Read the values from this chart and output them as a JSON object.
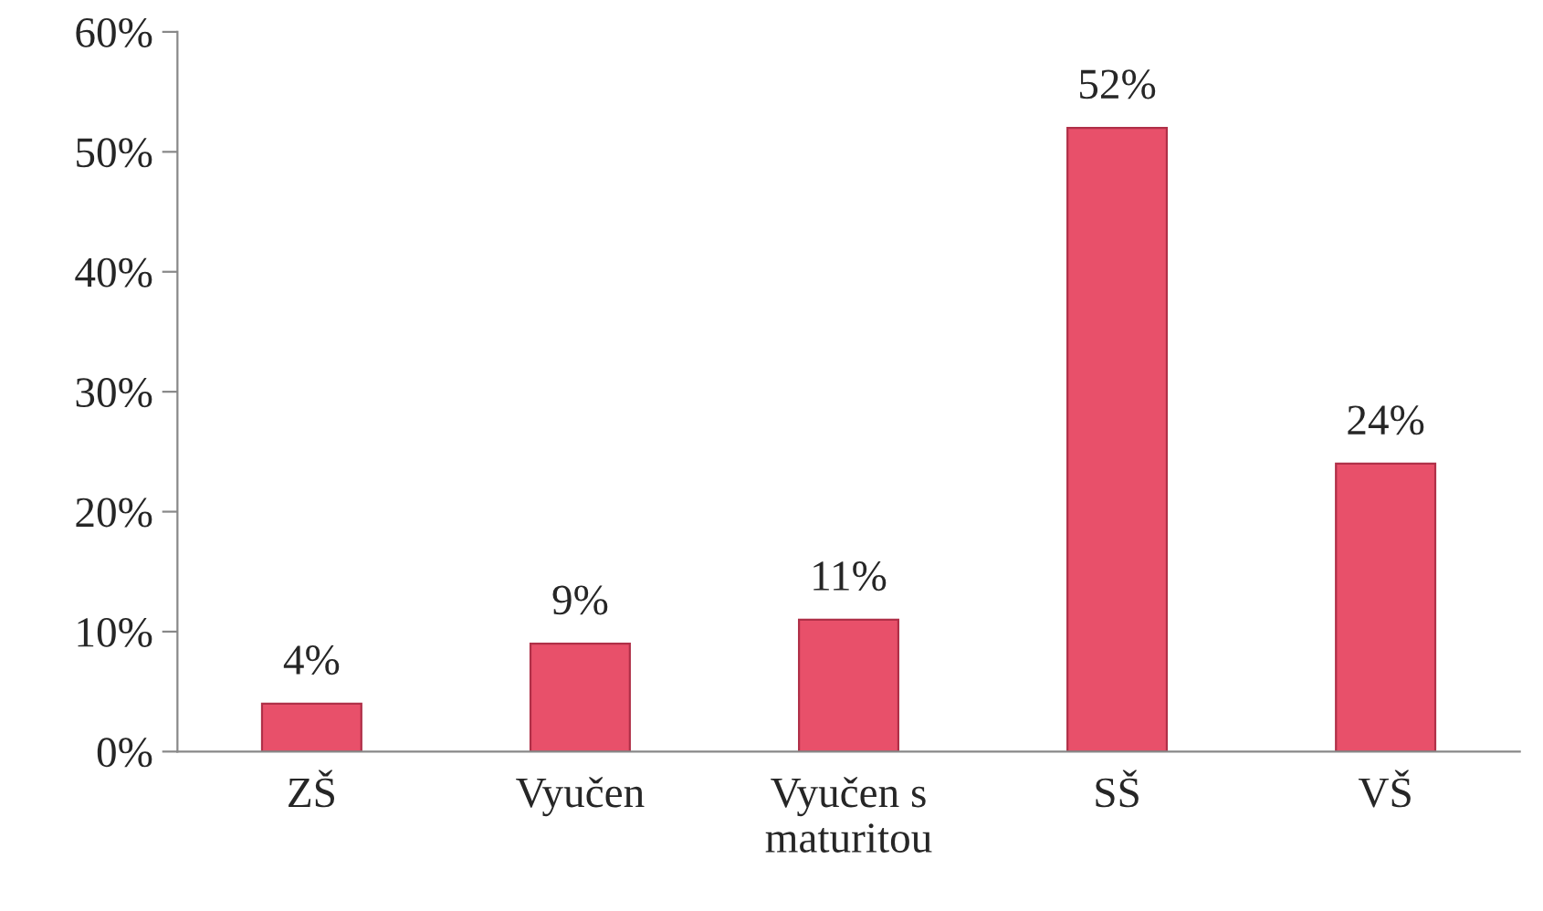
{
  "chart_data": {
    "type": "bar",
    "categories": [
      "ZŠ",
      "Vyučen",
      "Vyučen s\nmaturitou",
      "SŠ",
      "VŠ"
    ],
    "values": [
      4,
      9,
      11,
      52,
      24
    ],
    "value_labels": [
      "4%",
      "9%",
      "11%",
      "52%",
      "24%"
    ],
    "color": "#e8506a",
    "ylim": [
      0,
      60
    ],
    "yticks": [
      {
        "value": 0,
        "label": "0%"
      },
      {
        "value": 10,
        "label": "10%"
      },
      {
        "value": 20,
        "label": "20%"
      },
      {
        "value": 30,
        "label": "30%"
      },
      {
        "value": 40,
        "label": "40%"
      },
      {
        "value": 50,
        "label": "50%"
      },
      {
        "value": 60,
        "label": "60%"
      }
    ],
    "grid": false
  }
}
